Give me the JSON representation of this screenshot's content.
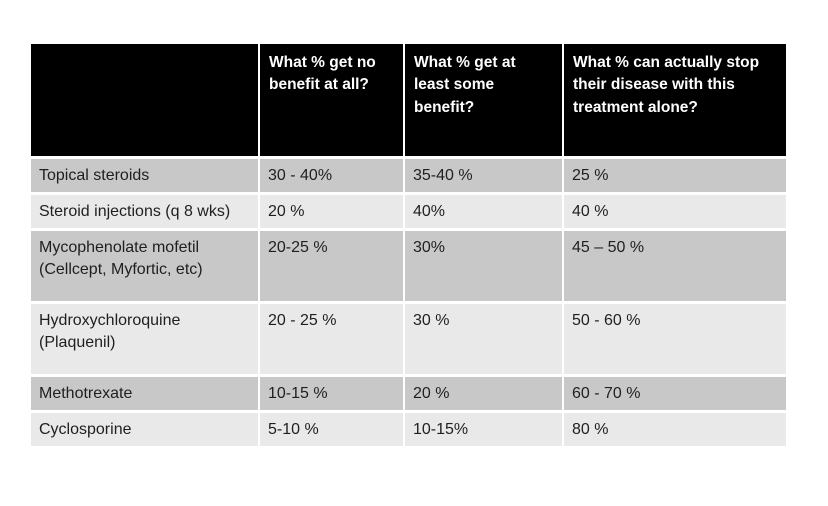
{
  "table": {
    "headers": [
      "",
      "What % get no benefit at all?",
      "What % get at least some benefit?",
      "What % can actually stop their disease with this treatment alone?"
    ],
    "rows": [
      {
        "treatment": "Topical steroids",
        "no_benefit": "30 - 40%",
        "some_benefit": "35-40 %",
        "stop_disease": "25 %"
      },
      {
        "treatment": "Steroid injections (q 8 wks)",
        "no_benefit": "20 %",
        "some_benefit": "40%",
        "stop_disease": "40 %"
      },
      {
        "treatment": "Mycophenolate mofetil (Cellcept, Myfortic, etc)",
        "no_benefit": "20-25 %",
        "some_benefit": "30%",
        "stop_disease": "45 – 50 %"
      },
      {
        "treatment": "Hydroxychloroquine (Plaquenil)",
        "no_benefit": "20 - 25 %",
        "some_benefit": "30 %",
        "stop_disease": "50 - 60 %"
      },
      {
        "treatment": "Methotrexate",
        "no_benefit": "10-15 %",
        "some_benefit": "20 %",
        "stop_disease": "60 - 70 %"
      },
      {
        "treatment": "Cyclosporine",
        "no_benefit": "5-10 %",
        "some_benefit": "10-15%",
        "stop_disease": "80 %"
      }
    ],
    "colors": {
      "header_bg": "#000000",
      "header_text": "#ffffff",
      "row_dark": "#c8c8c8",
      "row_light": "#e9e9e9",
      "body_text": "#1f1f1f",
      "page_bg": "#ffffff"
    }
  }
}
